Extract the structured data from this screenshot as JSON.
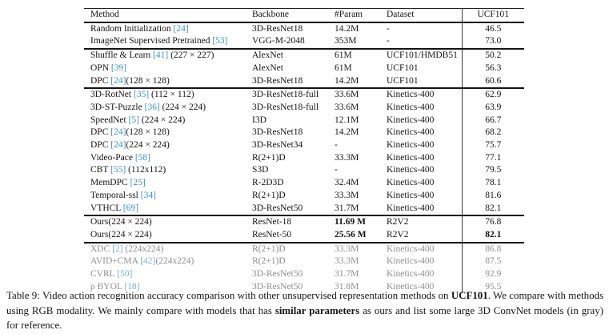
{
  "colors": {
    "citation_link": "#3c91d7",
    "citation_link_gray_row": "#79afdd",
    "gray_row_text": "#8f8f8f",
    "rule": "#141414"
  },
  "table": {
    "columns": [
      "Method",
      "Backbone",
      "#Param",
      "Dataset",
      "UCF101"
    ],
    "sections": [
      {
        "style": "normal",
        "rows": [
          {
            "method_pre": "Random Initialization ",
            "cite": "[24]",
            "method_post": "",
            "backbone": "3D-ResNet18",
            "param": "14.2M",
            "param_bold": false,
            "dataset": "-",
            "ucf101": "46.5",
            "ucf_bold": false
          },
          {
            "method_pre": "ImageNet Supervised Pretrained ",
            "cite": "[53]",
            "method_post": "",
            "backbone": "VGG-M-2048",
            "param": "353M",
            "param_bold": false,
            "dataset": "-",
            "ucf101": "73.0",
            "ucf_bold": false
          }
        ]
      },
      {
        "style": "normal",
        "rows": [
          {
            "method_pre": "Shuffle & Learn ",
            "cite": "[41]",
            "method_post": " (227 × 227)",
            "backbone": "AlexNet",
            "param": "61M",
            "param_bold": false,
            "dataset": "UCF101/HMDB51",
            "ucf101": "50.2",
            "ucf_bold": false
          },
          {
            "method_pre": "OPN ",
            "cite": "[39]",
            "method_post": "",
            "backbone": "AlexNet",
            "param": "61M",
            "param_bold": false,
            "dataset": "UCF101",
            "ucf101": "56.3",
            "ucf_bold": false
          },
          {
            "method_pre": "DPC ",
            "cite": "[24]",
            "method_post": "(128 × 128)",
            "backbone": "3D-ResNet18",
            "param": "14.2M",
            "param_bold": false,
            "dataset": "UCF101",
            "ucf101": "60.6",
            "ucf_bold": false
          }
        ]
      },
      {
        "style": "normal",
        "rows": [
          {
            "method_pre": "3D-RotNet ",
            "cite": "[35]",
            "method_post": " (112 × 112)",
            "backbone": "3D-ResNet18-full",
            "param": "33.6M",
            "param_bold": false,
            "dataset": "Kinetics-400",
            "ucf101": "62.9",
            "ucf_bold": false
          },
          {
            "method_pre": "3D-ST-Puzzle ",
            "cite": "[36]",
            "method_post": " (224 × 224)",
            "backbone": "3D-ResNet18-full",
            "param": "33.6M",
            "param_bold": false,
            "dataset": "Kinetics-400",
            "ucf101": "63.9",
            "ucf_bold": false
          },
          {
            "method_pre": "SpeedNet ",
            "cite": "[5]",
            "method_post": " (224 × 224)",
            "backbone": "I3D",
            "param": "12.1M",
            "param_bold": false,
            "dataset": "Kinetics-400",
            "ucf101": "66.7",
            "ucf_bold": false
          },
          {
            "method_pre": "DPC ",
            "cite": "[24]",
            "method_post": "(128 × 128)",
            "backbone": "3D-ResNet18",
            "param": "14.2M",
            "param_bold": false,
            "dataset": "Kinetics-400",
            "ucf101": "68.2",
            "ucf_bold": false
          },
          {
            "method_pre": "DPC ",
            "cite": "[24]",
            "method_post": "(224 × 224)",
            "backbone": "3D-ResNet34",
            "param": "-",
            "param_bold": false,
            "dataset": "Kinetics-400",
            "ucf101": "75.7",
            "ucf_bold": false
          },
          {
            "method_pre": "Video-Pace ",
            "cite": "[58]",
            "method_post": "",
            "backbone": "R(2+1)D",
            "param": "33.3M",
            "param_bold": false,
            "dataset": "Kinetics-400",
            "ucf101": "77.1",
            "ucf_bold": false
          },
          {
            "method_pre": "CBT ",
            "cite": "[55]",
            "method_post": " (112x112)",
            "backbone": "S3D",
            "param": "-",
            "param_bold": false,
            "dataset": "Kinetics-400",
            "ucf101": "79.5",
            "ucf_bold": false
          },
          {
            "method_pre": "MemDPC ",
            "cite": "[25]",
            "method_post": "",
            "backbone": "R-2D3D",
            "param": "32.4M",
            "param_bold": false,
            "dataset": "Kinetics-400",
            "ucf101": "78.1",
            "ucf_bold": false
          },
          {
            "method_pre": "Temporal-ssl ",
            "cite": "[34]",
            "method_post": "",
            "backbone": "R(2+1)D",
            "param": "33.3M",
            "param_bold": false,
            "dataset": "Kinetics-400",
            "ucf101": "81.6",
            "ucf_bold": false
          },
          {
            "method_pre": "VTHCL ",
            "cite": "[69]",
            "method_post": "",
            "backbone": "3D-ResNet50",
            "param": "31.7M",
            "param_bold": false,
            "dataset": "Kinetics-400",
            "ucf101": "82.1",
            "ucf_bold": false
          }
        ]
      },
      {
        "style": "normal",
        "rows": [
          {
            "method_pre": "Ours(224 × 224)",
            "cite": "",
            "method_post": "",
            "backbone": "ResNet-18",
            "param": "11.69 M",
            "param_bold": true,
            "dataset": "R2V2",
            "ucf101": "76.8",
            "ucf_bold": false
          },
          {
            "method_pre": "Ours(224 × 224)",
            "cite": "",
            "method_post": "",
            "backbone": "ResNet-50",
            "param": "25.56 M",
            "param_bold": true,
            "dataset": "R2V2",
            "ucf101": "82.1",
            "ucf_bold": true
          }
        ]
      },
      {
        "style": "gray",
        "rows": [
          {
            "method_pre": "XDC ",
            "cite": "[2]",
            "method_post": " (224x224)",
            "backbone": "R(2+1)D",
            "param": "33.3M",
            "param_bold": false,
            "dataset": "Kinetics-400",
            "ucf101": "86.8",
            "ucf_bold": false
          },
          {
            "method_pre": "AVID+CMA ",
            "cite": "[42]",
            "method_post": "(224x224)",
            "backbone": "R(2+1)D",
            "param": "33.3M",
            "param_bold": false,
            "dataset": "Kinetics-400",
            "ucf101": "87.5",
            "ucf_bold": false
          },
          {
            "method_pre": "CVRL ",
            "cite": "[50]",
            "method_post": "",
            "backbone": "3D-ResNet50",
            "param": "31.7M",
            "param_bold": false,
            "dataset": "Kinetics-400",
            "ucf101": "92.9",
            "ucf_bold": false
          },
          {
            "method_pre": "ρ BYOL ",
            "cite": "[18]",
            "method_post": "",
            "backbone": "3D-ResNet50",
            "param": "31.8M",
            "param_bold": false,
            "dataset": "Kinetics-400",
            "ucf101": "95.5",
            "ucf_bold": false
          }
        ]
      }
    ]
  },
  "caption": {
    "segments": [
      {
        "text": "Table 9: Video action recognition accuracy comparison with other unsupervised representation methods on ",
        "bold": false
      },
      {
        "text": "UCF101",
        "bold": true
      },
      {
        "text": ". We compare with methods using RGB modality. We mainly compare with models that has ",
        "bold": false
      },
      {
        "text": "similar parameters",
        "bold": true
      },
      {
        "text": " as ours and list some large 3D ConvNet models (in gray) for reference.",
        "bold": false
      }
    ]
  }
}
